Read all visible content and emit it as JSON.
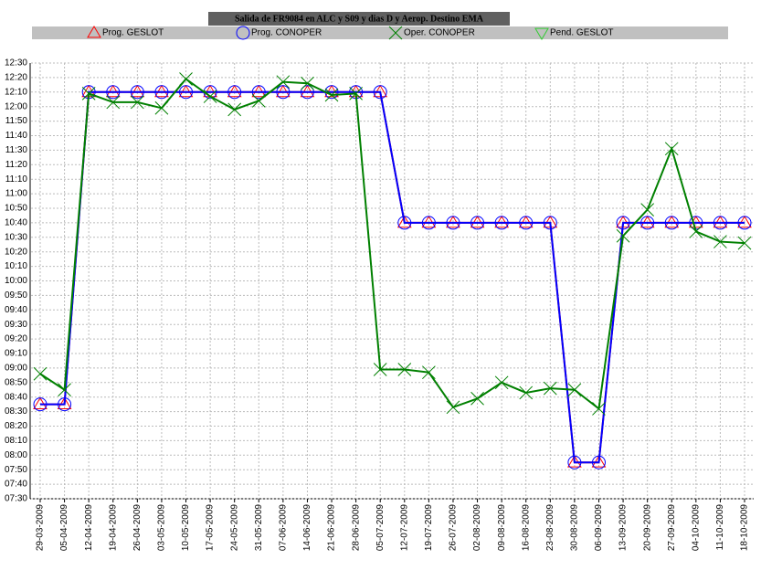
{
  "chart_data": {
    "type": "line",
    "title": "Salida de FR9084 en ALC y S09 y dias D y Aerop. Destino EMA",
    "categories": [
      "29-03-2009",
      "05-04-2009",
      "12-04-2009",
      "19-04-2009",
      "26-04-2009",
      "03-05-2009",
      "10-05-2009",
      "17-05-2009",
      "24-05-2009",
      "31-05-2009",
      "07-06-2009",
      "14-06-2009",
      "21-06-2009",
      "28-06-2009",
      "05-07-2009",
      "12-07-2009",
      "19-07-2009",
      "26-07-2009",
      "02-08-2009",
      "09-08-2009",
      "16-08-2009",
      "23-08-2009",
      "30-08-2009",
      "06-09-2009",
      "13-09-2009",
      "20-09-2009",
      "27-09-2009",
      "04-10-2009",
      "11-10-2009",
      "18-10-2009"
    ],
    "series": [
      {
        "name": "Prog. GESLOT",
        "color": "#ff0000",
        "marker": "triangle",
        "values": [
          515,
          515,
          730,
          730,
          730,
          730,
          730,
          730,
          730,
          730,
          730,
          730,
          730,
          730,
          730,
          640,
          640,
          640,
          640,
          640,
          640,
          640,
          475,
          475,
          640,
          640,
          640,
          640,
          640,
          640
        ]
      },
      {
        "name": "Prog. CONOPER",
        "color": "#0000ff",
        "marker": "circle",
        "values": [
          515,
          515,
          730,
          730,
          730,
          730,
          730,
          730,
          730,
          730,
          730,
          730,
          730,
          730,
          730,
          640,
          640,
          640,
          640,
          640,
          640,
          640,
          475,
          475,
          640,
          640,
          640,
          640,
          640,
          640
        ]
      },
      {
        "name": "Oper. CONOPER",
        "color": "#008000",
        "marker": "x",
        "values": [
          536,
          525,
          729,
          723,
          723,
          719,
          739,
          727,
          718,
          724,
          737,
          736,
          728,
          729,
          539,
          539,
          537,
          513,
          519,
          530,
          523,
          526,
          525,
          512,
          631,
          649,
          691,
          634,
          627,
          626
        ]
      },
      {
        "name": "Pend. GESLOT",
        "color": "#33cc33",
        "marker": "triangle-down",
        "values": [
          null,
          null,
          null,
          null,
          null,
          null,
          null,
          null,
          null,
          null,
          null,
          null,
          null,
          null,
          null,
          null,
          null,
          null,
          null,
          null,
          null,
          null,
          null,
          null,
          null,
          null,
          null,
          null,
          null,
          null
        ]
      }
    ],
    "ylim": [
      450,
      750
    ],
    "yticks": [
      {
        "value": 450,
        "label": "07:30"
      },
      {
        "value": 460,
        "label": "07:40"
      },
      {
        "value": 470,
        "label": "07:50"
      },
      {
        "value": 480,
        "label": "08:00"
      },
      {
        "value": 490,
        "label": "08:10"
      },
      {
        "value": 500,
        "label": "08:20"
      },
      {
        "value": 510,
        "label": "08:30"
      },
      {
        "value": 520,
        "label": "08:40"
      },
      {
        "value": 530,
        "label": "08:50"
      },
      {
        "value": 540,
        "label": "09:00"
      },
      {
        "value": 550,
        "label": "09:10"
      },
      {
        "value": 560,
        "label": "09:20"
      },
      {
        "value": 570,
        "label": "09:30"
      },
      {
        "value": 580,
        "label": "09:40"
      },
      {
        "value": 590,
        "label": "09:50"
      },
      {
        "value": 600,
        "label": "10:00"
      },
      {
        "value": 610,
        "label": "10:10"
      },
      {
        "value": 620,
        "label": "10:20"
      },
      {
        "value": 630,
        "label": "10:30"
      },
      {
        "value": 640,
        "label": "10:40"
      },
      {
        "value": 650,
        "label": "10:50"
      },
      {
        "value": 660,
        "label": "11:00"
      },
      {
        "value": 670,
        "label": "11:10"
      },
      {
        "value": 680,
        "label": "11:20"
      },
      {
        "value": 690,
        "label": "11:30"
      },
      {
        "value": 700,
        "label": "11:40"
      },
      {
        "value": 710,
        "label": "11:50"
      },
      {
        "value": 720,
        "label": "12:00"
      },
      {
        "value": 730,
        "label": "12:10"
      },
      {
        "value": 740,
        "label": "12:20"
      },
      {
        "value": 750,
        "label": "12:30"
      }
    ],
    "grid": true
  }
}
